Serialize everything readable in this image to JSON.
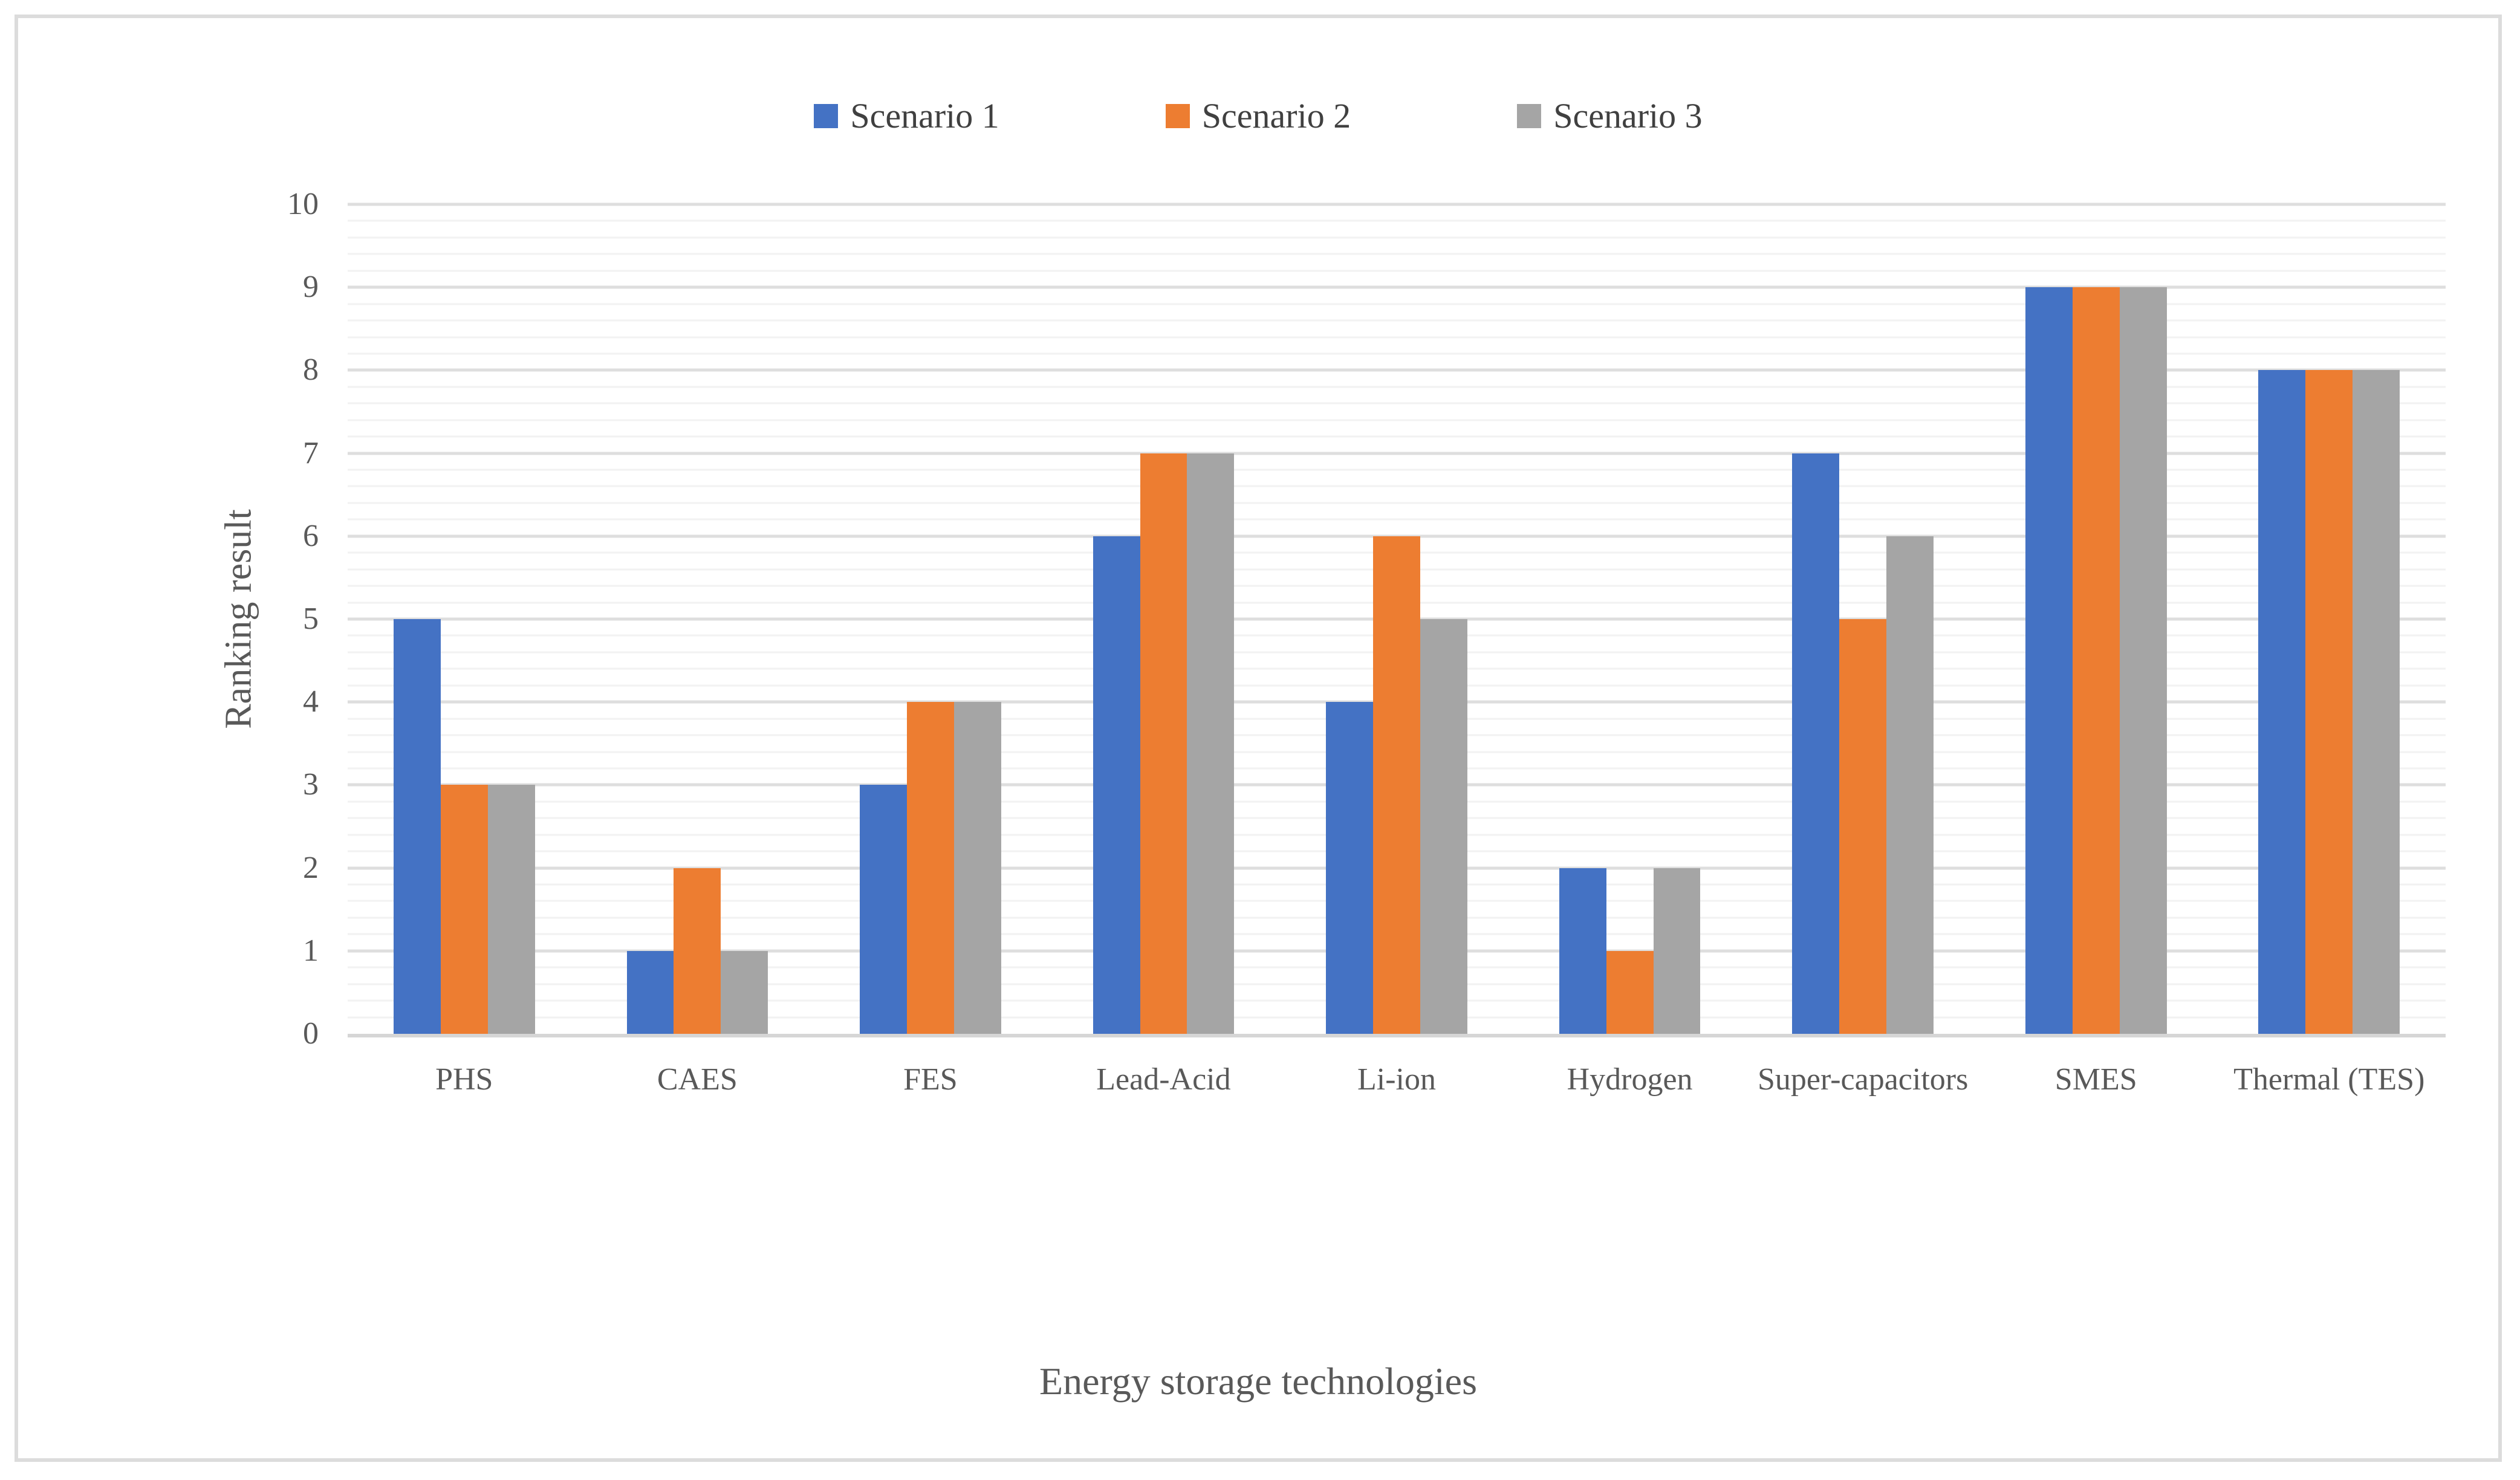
{
  "page": {
    "background": "#ffffff",
    "border_color": "#dcdcdc"
  },
  "colors": {
    "axis_line": "#d6d6d6",
    "major_gridline": "#dedede",
    "minor_gridline": "#f2f2f2",
    "tick_text": "#595959",
    "axis_title_text": "#595959",
    "legend_text": "#404040"
  },
  "chart_data": {
    "type": "bar",
    "title": "",
    "xlabel": "Energy storage technologies",
    "ylabel": "Ranking result",
    "ylim": [
      0,
      10
    ],
    "y_major_unit": 1,
    "y_minor_unit": 0.2,
    "grid": "horizontal major and minor gridlines, no vertical axis line",
    "legend_position": "top-center",
    "y_tick_labels": [
      "0",
      "1",
      "2",
      "3",
      "4",
      "5",
      "6",
      "7",
      "8",
      "9",
      "10"
    ],
    "categories": [
      "PHS",
      "CAES",
      "FES",
      "Lead-Acid",
      "Li-ion",
      "Hydrogen",
      "Super-capacitors",
      "SMES",
      "Thermal (TES)"
    ],
    "series": [
      {
        "name": "Scenario 1",
        "color": "#4472C4",
        "values": [
          5,
          1,
          3,
          6,
          4,
          2,
          7,
          9,
          8
        ]
      },
      {
        "name": "Scenario 2",
        "color": "#ED7D31",
        "values": [
          3,
          2,
          4,
          7,
          6,
          1,
          5,
          9,
          8
        ]
      },
      {
        "name": "Scenario 3",
        "color": "#A5A5A5",
        "values": [
          3,
          1,
          4,
          7,
          5,
          2,
          6,
          9,
          8
        ]
      }
    ]
  }
}
